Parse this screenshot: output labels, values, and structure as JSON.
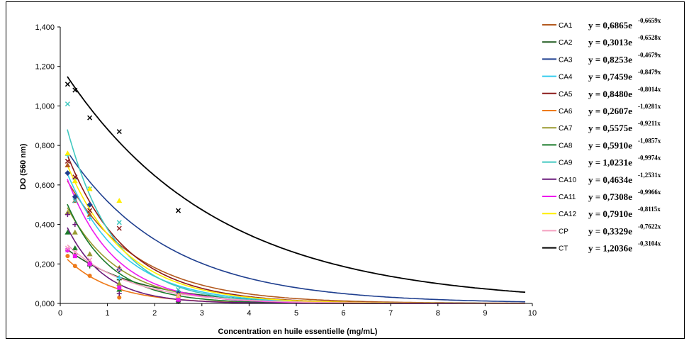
{
  "chart_data": {
    "type": "scatter",
    "title": "",
    "xlabel": "Concentration en huile essentielle (mg/mL)",
    "ylabel": "DO (560 nm)",
    "xlim": [
      0,
      10
    ],
    "ylim": [
      0,
      1.4
    ],
    "x_ticks": [
      "0",
      "1",
      "2",
      "3",
      "4",
      "5",
      "6",
      "7",
      "8",
      "9",
      "10"
    ],
    "y_ticks": [
      "0,000",
      "0,200",
      "0,400",
      "0,600",
      "0,800",
      "1,000",
      "1,200",
      "1,400"
    ],
    "grid": false,
    "legend": "right",
    "trendline": "exponential",
    "x_points": [
      0.156,
      0.3125,
      0.625,
      1.25,
      2.5
    ],
    "series": [
      {
        "name": "CA1",
        "color": "#b35a1f",
        "marker": "triangle",
        "a": 0.6865,
        "b": -0.6659,
        "equation": "y = 0,6865e",
        "exponent": "-0,6659x",
        "points": [
          0.7,
          0.52,
          0.45,
          0.18,
          0.05
        ]
      },
      {
        "name": "CA2",
        "color": "#1f5a1f",
        "marker": "plus",
        "a": 0.3013,
        "b": -0.6528,
        "equation": "y = 0,3013e",
        "exponent": "-0,6528x",
        "points": [
          0.27,
          0.25,
          0.19,
          0.12,
          0.03
        ]
      },
      {
        "name": "CA3",
        "color": "#1f3f8f",
        "marker": "diamond",
        "a": 0.8253,
        "b": -0.4679,
        "equation": "y = 0,8253e",
        "exponent": "-0,4679x",
        "points": [
          0.66,
          0.54,
          0.5,
          0.17,
          0.06
        ]
      },
      {
        "name": "CA4",
        "color": "#33ccee",
        "marker": "plus",
        "a": 0.7459,
        "b": -0.8479,
        "equation": "y = 0,7459e",
        "exponent": "-0,8479x",
        "points": [
          0.75,
          0.63,
          0.43,
          0.13,
          0.03
        ]
      },
      {
        "name": "CA5",
        "color": "#8b1a1a",
        "marker": "cross",
        "a": 0.848,
        "b": -0.8014,
        "equation": "y = 0,8480e",
        "exponent": "-0,8014x",
        "points": [
          0.72,
          0.64,
          0.47,
          0.38,
          0.04
        ]
      },
      {
        "name": "CA6",
        "color": "#ee7a1a",
        "marker": "circle",
        "a": 0.2607,
        "b": -1.0281,
        "equation": "y = 0,2607e",
        "exponent": "-1,0281x",
        "points": [
          0.24,
          0.19,
          0.14,
          0.03,
          0.01
        ]
      },
      {
        "name": "CA7",
        "color": "#9a9a30",
        "marker": "triangle",
        "a": 0.5575,
        "b": -0.9211,
        "equation": "y = 0,5575e",
        "exponent": "-0,9211x",
        "points": [
          0.46,
          0.36,
          0.25,
          0.1,
          0.02
        ]
      },
      {
        "name": "CA8",
        "color": "#1a7a2a",
        "marker": "triangle",
        "a": 0.591,
        "b": -1.0857,
        "equation": "y = 0,5910e",
        "exponent": "-1,0857x",
        "points": [
          0.36,
          0.28,
          0.2,
          0.07,
          0.01
        ]
      },
      {
        "name": "CA9",
        "color": "#40c8c0",
        "marker": "cross",
        "a": 1.0231,
        "b": -0.9974,
        "equation": "y = 1,0231e",
        "exponent": "-0,9974x",
        "points": [
          1.01,
          0.52,
          0.58,
          0.41,
          0.07
        ]
      },
      {
        "name": "CA10",
        "color": "#6a1a7a",
        "marker": "plus",
        "a": 0.4634,
        "b": -1.2531,
        "equation": "y = 0,4634e",
        "exponent": "-1,2531x",
        "points": [
          0.45,
          0.4,
          0.2,
          0.05,
          0.01
        ]
      },
      {
        "name": "CA11",
        "color": "#ee1aee",
        "marker": "square",
        "a": 0.7308,
        "b": -0.9966,
        "equation": "y = 0,7308e",
        "exponent": "-0,9966x",
        "points": [
          0.27,
          0.24,
          0.2,
          0.08,
          0.02
        ]
      },
      {
        "name": "CA12",
        "color": "#ffee00",
        "marker": "triangle",
        "a": 0.791,
        "b": -0.8115,
        "equation": "y = 0,7910e",
        "exponent": "-0,8115x",
        "points": [
          0.76,
          0.62,
          0.58,
          0.52,
          0.04
        ]
      },
      {
        "name": "CP",
        "color": "#f4a0c0",
        "marker": "cross",
        "a": 0.3329,
        "b": -0.7622,
        "equation": "y = 0,3329e",
        "exponent": "-0,7622x",
        "points": [
          0.28,
          0.26,
          0.22,
          0.17,
          0.04
        ]
      },
      {
        "name": "CT",
        "color": "#000000",
        "marker": "cross",
        "a": 1.2036,
        "b": -0.3104,
        "equation": "y = 1,2036e",
        "exponent": "-0,3104x",
        "points": [
          1.11,
          1.08,
          0.94,
          0.87,
          0.47
        ]
      }
    ]
  }
}
